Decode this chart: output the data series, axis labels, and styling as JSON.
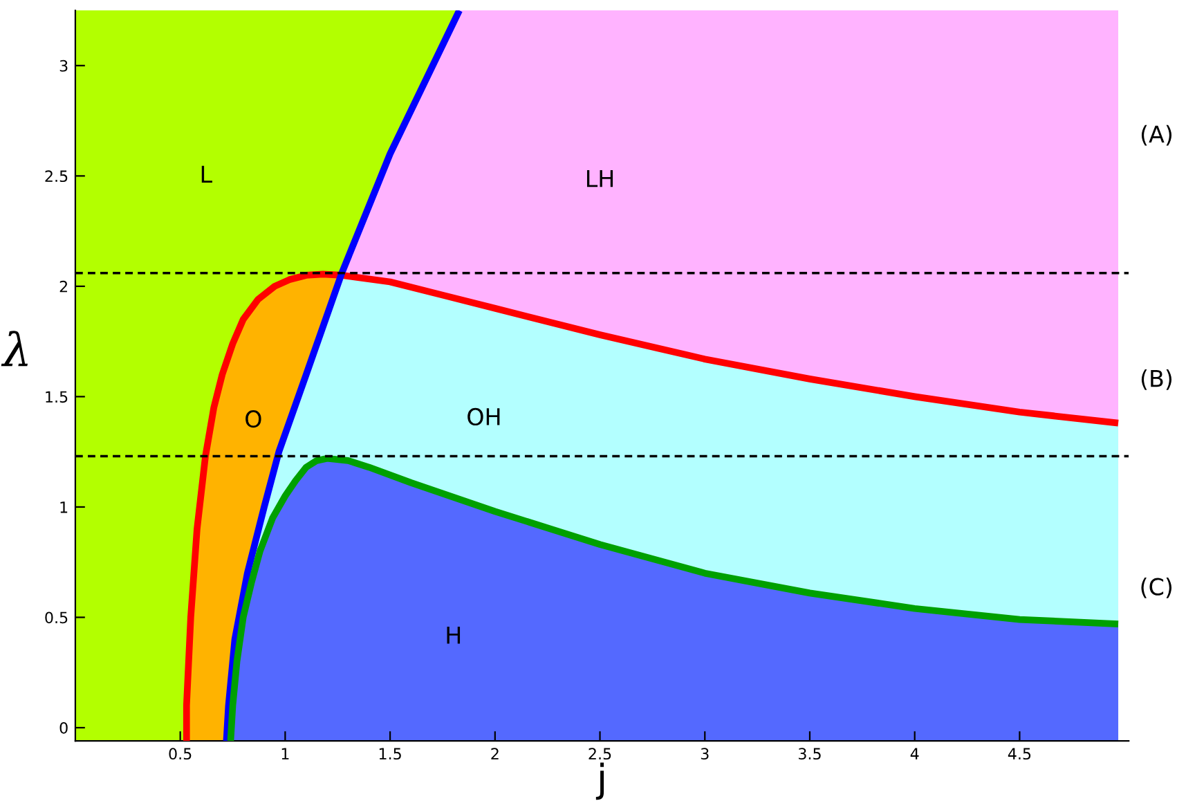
{
  "chart_data": {
    "type": "line",
    "xlabel": "j",
    "ylabel": "λ",
    "xlim": [
      0,
      5.02
    ],
    "ylim": [
      -0.06,
      3.25
    ],
    "xticks": [
      0.5,
      1,
      1.5,
      2,
      2.5,
      3,
      3.5,
      4,
      4.5
    ],
    "yticks": [
      0,
      0.5,
      1,
      1.5,
      2,
      2.5,
      3
    ],
    "grid": false,
    "legend": false,
    "marker": "none",
    "line_style": "solid",
    "series": [
      {
        "color": "#ff0000",
        "x": [
          0.53,
          0.53,
          0.55,
          0.58,
          0.62,
          0.66,
          0.7,
          0.75,
          0.8,
          0.87,
          0.95,
          1.02,
          1.1,
          1.18,
          1.27,
          1.5,
          1.75,
          2.0,
          2.5,
          3.0,
          3.5,
          4.0,
          4.5,
          4.97
        ],
        "values": [
          -0.06,
          0.1,
          0.5,
          0.9,
          1.23,
          1.45,
          1.6,
          1.74,
          1.85,
          1.94,
          2.0,
          2.03,
          2.05,
          2.055,
          2.05,
          2.02,
          1.96,
          1.9,
          1.78,
          1.67,
          1.58,
          1.5,
          1.43,
          1.38
        ]
      },
      {
        "color": "#0000ff",
        "x": [
          0.72,
          0.73,
          0.76,
          0.82,
          0.9,
          0.97,
          1.1,
          1.27,
          1.5,
          1.83
        ],
        "values": [
          -0.06,
          0.1,
          0.4,
          0.7,
          1.0,
          1.25,
          1.6,
          2.06,
          2.6,
          3.25
        ]
      },
      {
        "color": "#00a000",
        "x": [
          0.74,
          0.75,
          0.77,
          0.8,
          0.84,
          0.88,
          0.94,
          1.0,
          1.05,
          1.1,
          1.15,
          1.2,
          1.3,
          1.4,
          1.6,
          2.0,
          2.5,
          3.0,
          3.5,
          4.0,
          4.5,
          4.97
        ],
        "values": [
          -0.06,
          0.1,
          0.3,
          0.5,
          0.66,
          0.8,
          0.95,
          1.05,
          1.12,
          1.18,
          1.21,
          1.22,
          1.21,
          1.18,
          1.11,
          0.98,
          0.83,
          0.7,
          0.61,
          0.54,
          0.49,
          0.47
        ]
      }
    ],
    "ref_lines": [
      {
        "axis": "y",
        "value": 2.06,
        "color": "#000000",
        "line_style": "dashed"
      },
      {
        "axis": "y",
        "value": 1.23,
        "color": "#000000",
        "line_style": "dashed"
      }
    ],
    "annotations": [
      "L",
      "LH",
      "O",
      "OH",
      "H",
      "(A)",
      "(B)",
      "(C)"
    ]
  }
}
